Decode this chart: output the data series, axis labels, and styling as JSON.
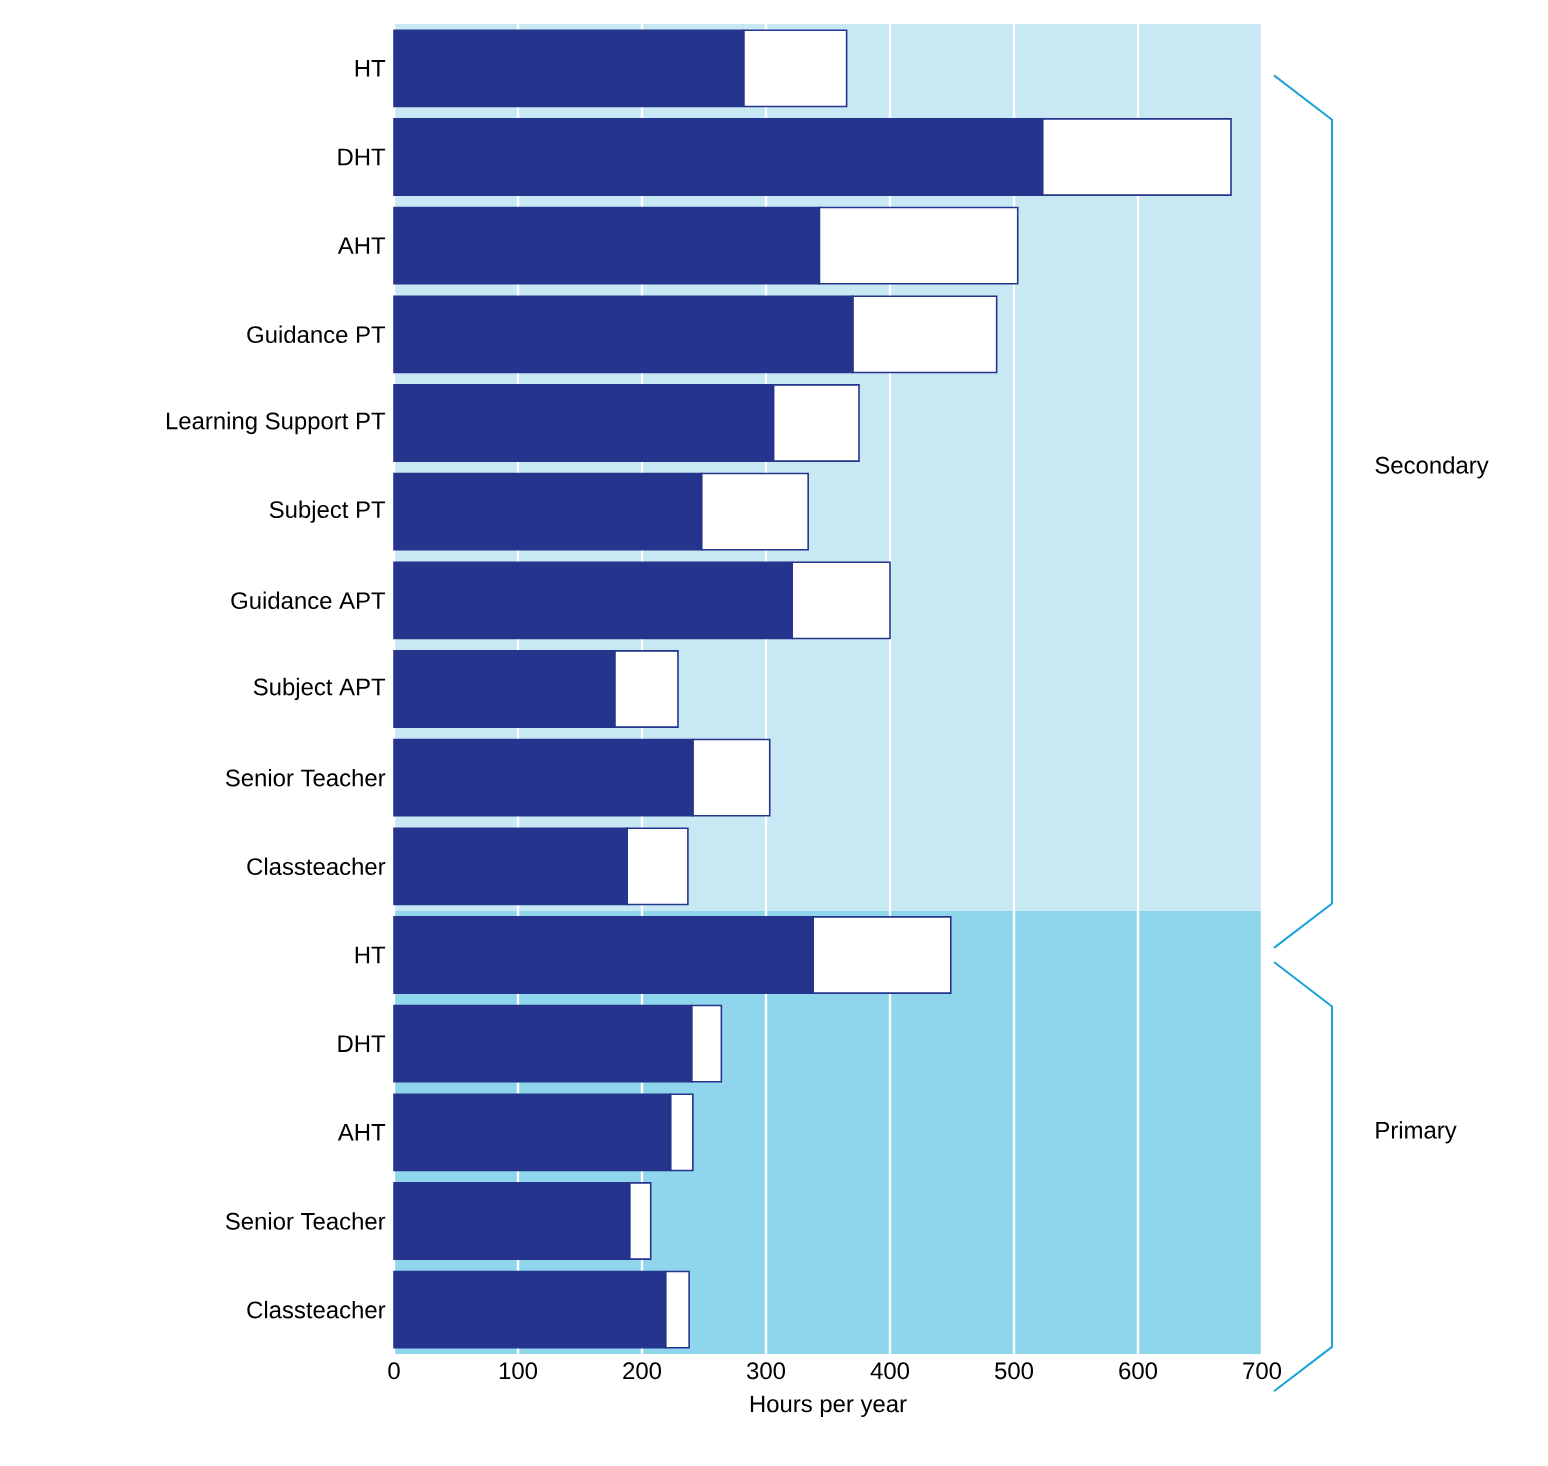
{
  "chart_data": {
    "type": "bar",
    "orientation": "horizontal",
    "stacked": true,
    "xlabel": "Hours per year",
    "categories": [
      "HT",
      "DHT",
      "AHT",
      "Guidance PT",
      "Learning Support PT",
      "Subject PT",
      "Guidance APT",
      "Subject APT",
      "Senior Teacher",
      "Classteacher",
      "HT",
      "DHT",
      "AHT",
      "Senior Teacher",
      "Classteacher"
    ],
    "series": [
      {
        "color": "#25348c",
        "values": [
          282,
          523,
          343,
          370,
          306,
          248,
          321,
          178,
          241,
          188,
          338,
          240,
          223,
          190,
          219
        ]
      },
      {
        "color": "#ffffff",
        "values": [
          83,
          152,
          160,
          116,
          69,
          86,
          79,
          51,
          62,
          49,
          111,
          24,
          18,
          17,
          19
        ]
      }
    ],
    "xlim": [
      0,
      700
    ],
    "xticks": [
      0,
      100,
      200,
      300,
      400,
      500,
      600,
      700
    ],
    "grid": "x",
    "bands": [
      {
        "axis": "y",
        "from": "HT",
        "to": "Classteacher",
        "color": "#c8e8f3"
      }
    ],
    "annotations": [
      "Secondary",
      "Primary"
    ]
  }
}
